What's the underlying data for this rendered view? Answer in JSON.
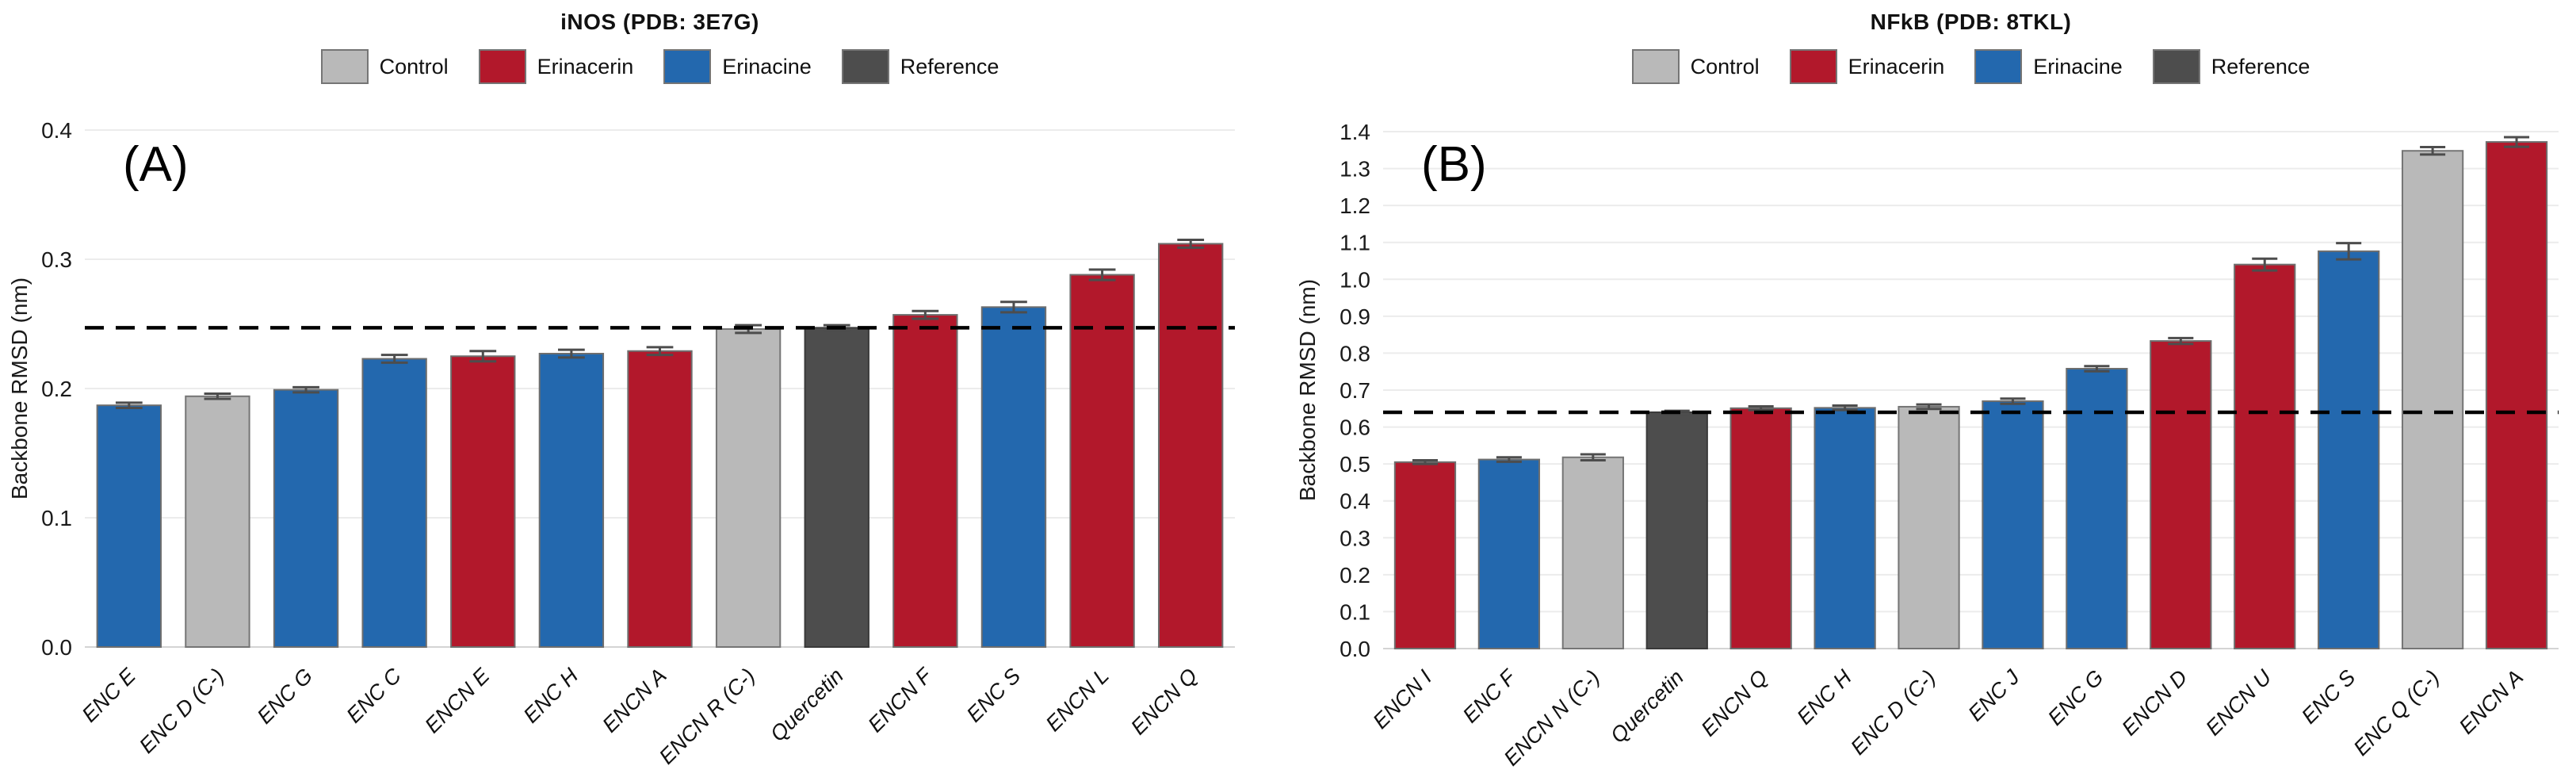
{
  "figure_type": "two-panel bar chart figure",
  "y_axis_label": "Backbone RMSD (nm)",
  "legend": {
    "items": [
      {
        "label": "Control",
        "color": "#b9b9b9",
        "edge": "#757575"
      },
      {
        "label": "Erinacerin",
        "color": "#b2182b",
        "edge": "#6e6e6e"
      },
      {
        "label": "Erinacine",
        "color": "#2368ae",
        "edge": "#6e6e6e"
      },
      {
        "label": "Reference",
        "color": "#4d4d4d",
        "edge": "#3a3a3a"
      }
    ]
  },
  "chart_data": [
    {
      "type": "bar",
      "panel_label": "(A)",
      "title": "iNOS (PDB: 3E7G)",
      "ylabel": "Backbone RMSD (nm)",
      "ylim": [
        0,
        0.4
      ],
      "ytick_step": 0.1,
      "ytick_decimals": 1,
      "grid": true,
      "legend_position": "top-center",
      "reference_line": 0.247,
      "categories": [
        "ENC E",
        "ENC D (C-)",
        "ENC G",
        "ENC C",
        "ENCN E",
        "ENC H",
        "ENCN A",
        "ENCN R (C-)",
        "Quercetin",
        "ENCN F",
        "ENC S",
        "ENCN L",
        "ENCN Q"
      ],
      "values": [
        0.187,
        0.194,
        0.199,
        0.223,
        0.225,
        0.227,
        0.229,
        0.246,
        0.247,
        0.257,
        0.263,
        0.288,
        0.312
      ],
      "errors": [
        0.002,
        0.002,
        0.002,
        0.003,
        0.004,
        0.003,
        0.003,
        0.003,
        0.002,
        0.003,
        0.004,
        0.004,
        0.003
      ],
      "groups": [
        "Erinacine",
        "Control",
        "Erinacine",
        "Erinacine",
        "Erinacerin",
        "Erinacine",
        "Erinacerin",
        "Control",
        "Reference",
        "Erinacerin",
        "Erinacine",
        "Erinacerin",
        "Erinacerin"
      ]
    },
    {
      "type": "bar",
      "panel_label": "(B)",
      "title": "NFkB (PDB: 8TKL)",
      "ylabel": "Backbone RMSD (nm)",
      "ylim": [
        0,
        1.4
      ],
      "ytick_step": 0.1,
      "ytick_decimals": 1,
      "grid": true,
      "legend_position": "top-center",
      "reference_line": 0.64,
      "categories": [
        "ENCN I",
        "ENC F",
        "ENCN N (C-)",
        "Quercetin",
        "ENCN Q",
        "ENC H",
        "ENC D (C-)",
        "ENC J",
        "ENC G",
        "ENCN D",
        "ENCN U",
        "ENC S",
        "ENC Q (C-)",
        "ENCN A"
      ],
      "values": [
        0.505,
        0.512,
        0.518,
        0.64,
        0.651,
        0.652,
        0.655,
        0.67,
        0.758,
        0.833,
        1.04,
        1.076,
        1.348,
        1.372
      ],
      "errors": [
        0.005,
        0.006,
        0.008,
        0.004,
        0.005,
        0.006,
        0.006,
        0.007,
        0.007,
        0.008,
        0.016,
        0.022,
        0.01,
        0.013
      ],
      "groups": [
        "Erinacerin",
        "Erinacine",
        "Control",
        "Reference",
        "Erinacerin",
        "Erinacine",
        "Control",
        "Erinacine",
        "Erinacine",
        "Erinacerin",
        "Erinacerin",
        "Erinacine",
        "Control",
        "Erinacerin"
      ]
    }
  ]
}
